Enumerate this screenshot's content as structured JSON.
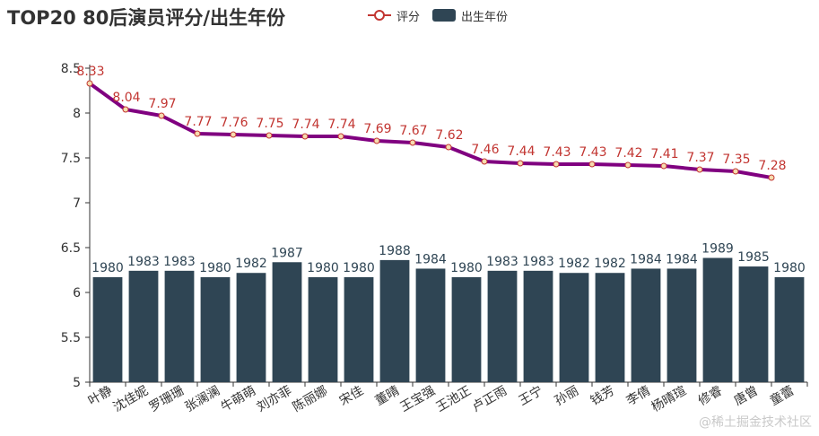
{
  "chart_data": {
    "type": "bar-line",
    "title": "TOP20 80后演员评分/出生年份",
    "legend": [
      {
        "name": "评分",
        "marker": "line-circle",
        "color": "#c23531"
      },
      {
        "name": "出生年份",
        "marker": "rect",
        "color": "#2f4554"
      }
    ],
    "categories": [
      "叶静",
      "沈佳妮",
      "罗珊珊",
      "张澜澜",
      "牛萌萌",
      "刘亦菲",
      "陈丽娜",
      "宋佳",
      "董晴",
      "王宝强",
      "王池正",
      "卢正雨",
      "王宁",
      "孙丽",
      "钱芳",
      "李倩",
      "杨晴瑄",
      "修睿",
      "唐曾",
      "童蕾"
    ],
    "series": [
      {
        "name": "评分",
        "type": "line",
        "values": [
          8.33,
          8.04,
          7.97,
          7.77,
          7.76,
          7.75,
          7.74,
          7.74,
          7.69,
          7.67,
          7.62,
          7.46,
          7.44,
          7.43,
          7.43,
          7.42,
          7.41,
          7.37,
          7.35,
          7.28
        ],
        "line_color": "#800080",
        "label_color": "#c23531"
      },
      {
        "name": "出生年份",
        "type": "bar",
        "values": [
          1980,
          1983,
          1983,
          1980,
          1982,
          1987,
          1980,
          1980,
          1988,
          1984,
          1980,
          1983,
          1983,
          1982,
          1982,
          1984,
          1984,
          1989,
          1985,
          1980
        ],
        "color": "#2f4554",
        "label_color": "#2f4554"
      }
    ],
    "y_axis": {
      "min": 5,
      "max": 8.5,
      "interval": 0.5,
      "tick_labels": [
        "5",
        "5.5",
        "6",
        "6.5",
        "7",
        "7.5",
        "8",
        "8.5"
      ]
    },
    "grid": false,
    "legend_position": "top-center"
  },
  "watermark": "@稀土掘金技术社区"
}
